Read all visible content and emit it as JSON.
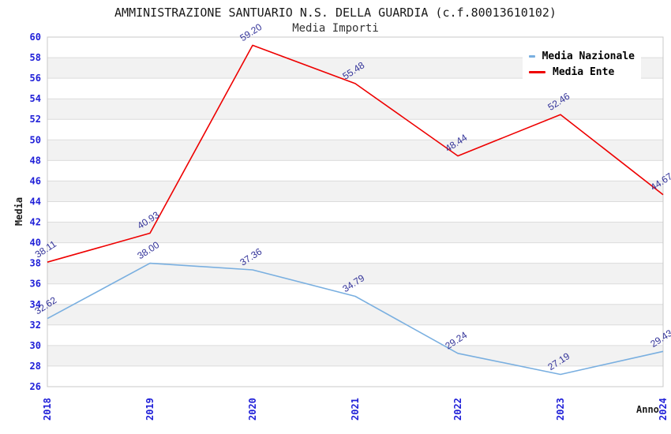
{
  "chart_data": {
    "type": "line",
    "title": "AMMINISTRAZIONE SANTUARIO N.S. DELLA GUARDIA (c.f.80013610102)",
    "subtitle": "Media Importi",
    "xlabel": "Anno",
    "ylabel": "Media",
    "categories": [
      "2018",
      "2019",
      "2020",
      "2021",
      "2022",
      "2023",
      "2024"
    ],
    "ylim": [
      26,
      60
    ],
    "ytick_step": 2,
    "grid": "horizontal-gridlines-with-alternating-bands",
    "legend_position": "top-right",
    "value_label_decimals": 2,
    "series": [
      {
        "name": "Media Nazionale",
        "color": "#79AFE0",
        "values": [
          32.62,
          38.0,
          37.36,
          34.79,
          29.24,
          27.19,
          29.43
        ]
      },
      {
        "name": "Media Ente",
        "color": "#EE0000",
        "values": [
          38.11,
          40.93,
          59.2,
          55.48,
          48.44,
          52.46,
          44.67
        ]
      }
    ],
    "colors": {
      "tick_label": "#2020D8",
      "value_label": "#333399",
      "band": "#F2F2F2",
      "gridline": "#DCDCDC",
      "plot_border": "#C8C8C8",
      "background": "#FFFFFF"
    }
  }
}
